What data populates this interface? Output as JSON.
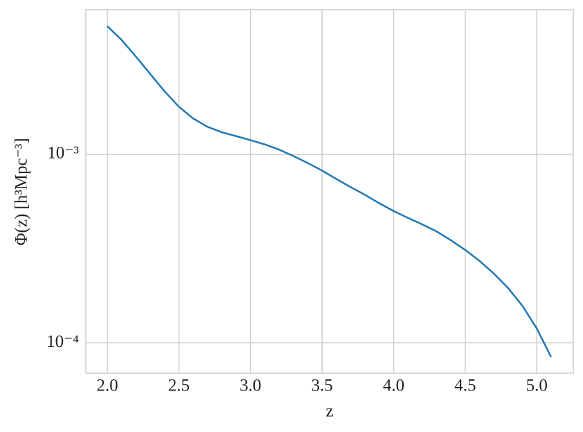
{
  "chart_data": {
    "type": "line",
    "x_label": "z",
    "y_label": "Φ(z) [h³Mpc⁻³]",
    "x": [
      2.0,
      2.1,
      2.2,
      2.3,
      2.4,
      2.5,
      2.6,
      2.7,
      2.8,
      2.9,
      3.0,
      3.1,
      3.2,
      3.3,
      3.4,
      3.5,
      3.6,
      3.7,
      3.8,
      3.9,
      4.0,
      4.1,
      4.2,
      4.3,
      4.4,
      4.5,
      4.6,
      4.7,
      4.8,
      4.9,
      5.0,
      5.1
    ],
    "values": [
      0.00479,
      0.00405,
      0.0033,
      0.00267,
      0.00216,
      0.00179,
      0.00155,
      0.0014,
      0.00131,
      0.00125,
      0.00119,
      0.00113,
      0.00106,
      0.00098,
      0.0009,
      0.00082,
      0.00074,
      0.00067,
      0.00061,
      0.00055,
      0.0005,
      0.00046,
      0.000425,
      0.00039,
      0.00035,
      0.000311,
      0.000272,
      0.000233,
      0.000195,
      0.000157,
      0.000119,
      8.4e-05
    ],
    "color": "#1f77b4",
    "xlim": [
      1.85,
      5.255
    ],
    "ylim": [
      6.9e-05,
      0.00586
    ],
    "yscale": "log",
    "xticks": [
      {
        "value": 2,
        "label": "2.0"
      },
      {
        "value": 2.5,
        "label": "2.5"
      },
      {
        "value": 3,
        "label": "3.0"
      },
      {
        "value": 3.5,
        "label": "3.5"
      },
      {
        "value": 4,
        "label": "4.0"
      },
      {
        "value": 4.5,
        "label": "4.5"
      },
      {
        "value": 5,
        "label": "5.0"
      }
    ],
    "yticks": [
      {
        "value": 0.0001,
        "label": "10⁻⁴"
      },
      {
        "value": 0.001,
        "label": "10⁻³"
      }
    ],
    "grid": true
  }
}
